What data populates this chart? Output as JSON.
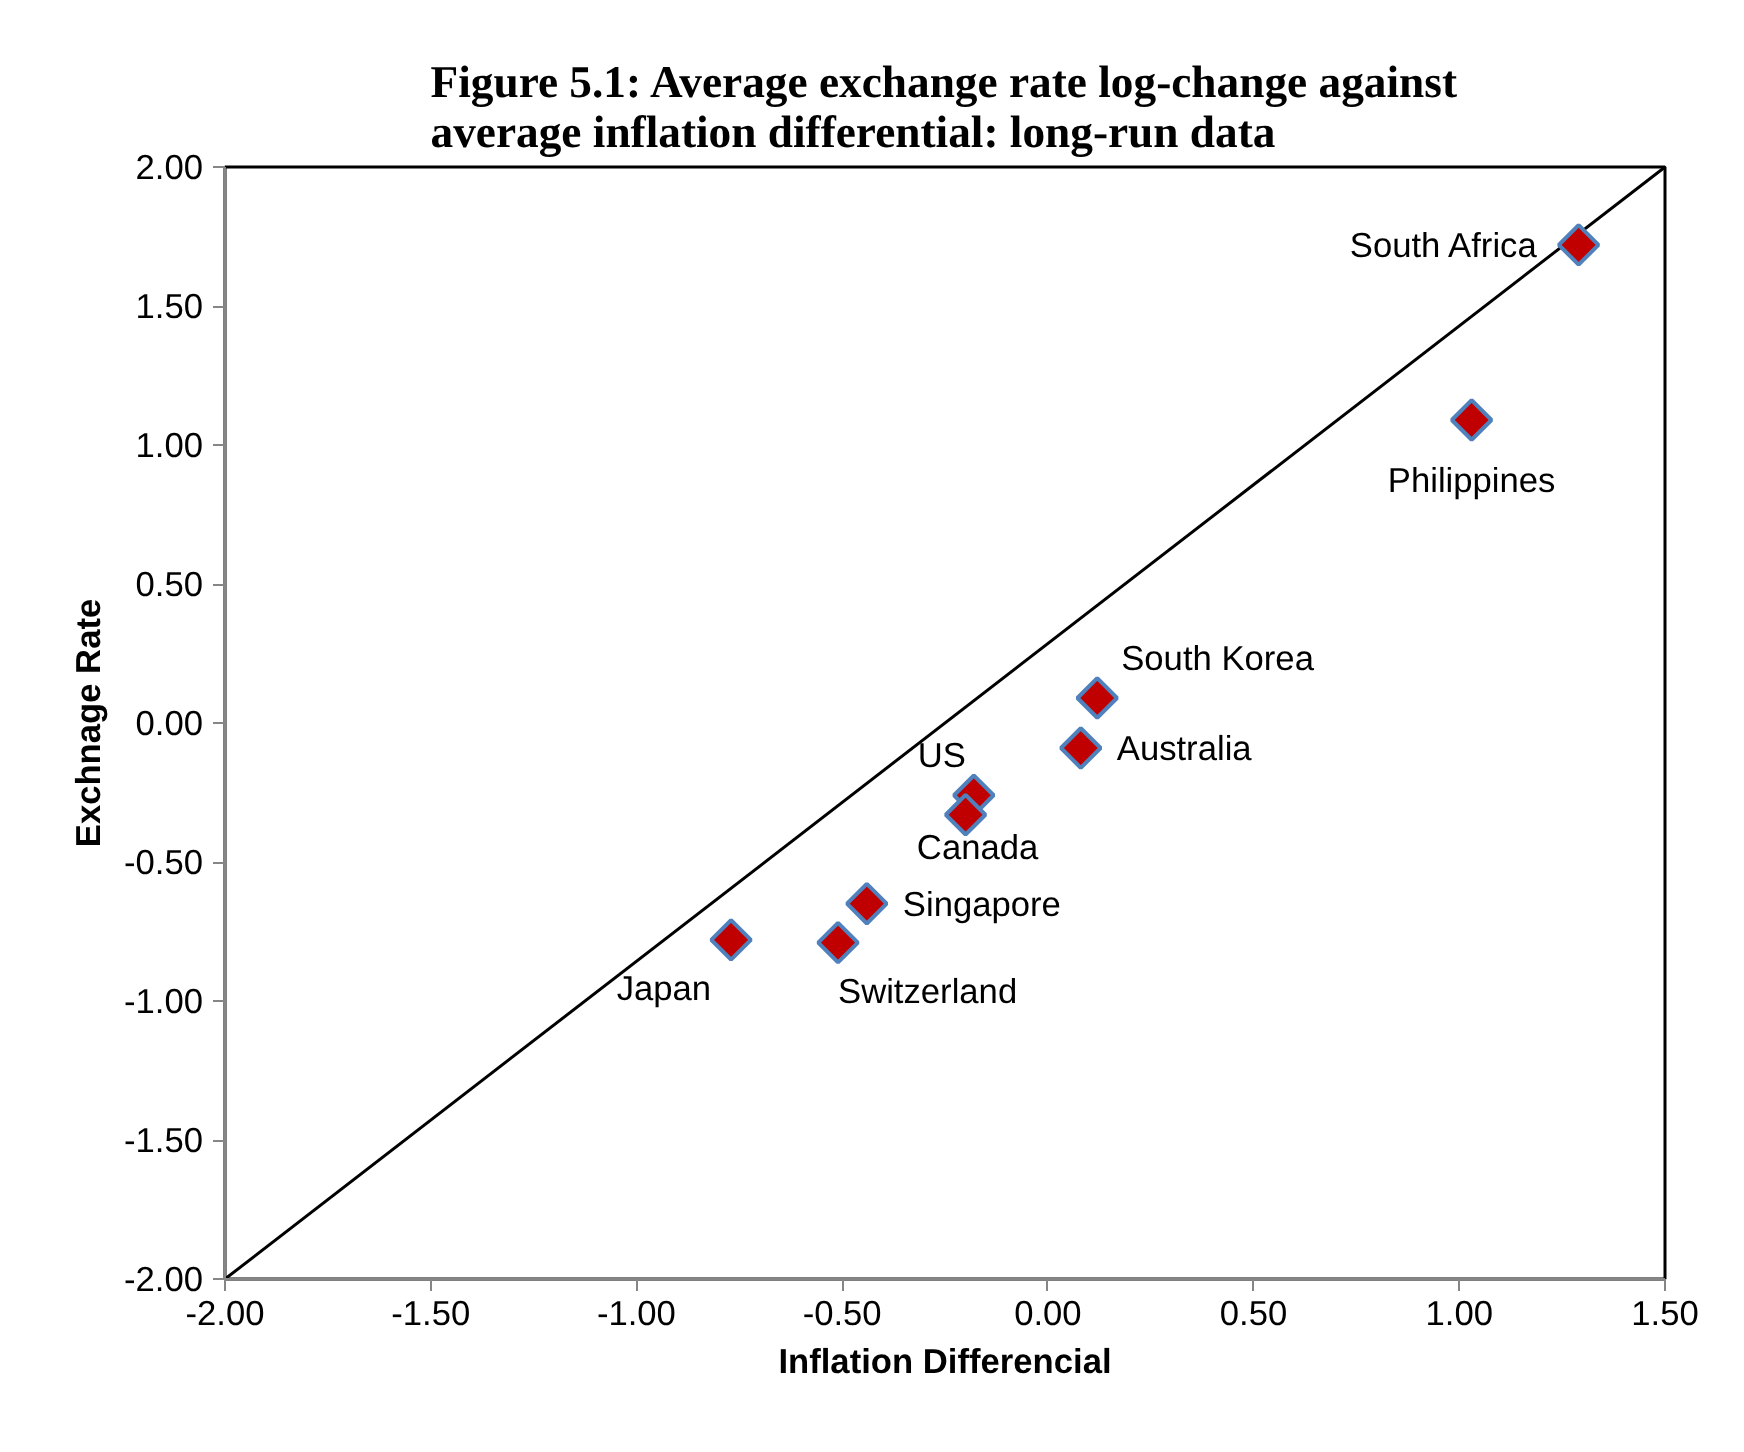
{
  "chart_data": {
    "type": "scatter",
    "title": "Figure 5.1: Average exchange rate log-change against average inflation differential: long-run data",
    "xlabel": "Inflation Differencial",
    "ylabel": "Exchnage Rate",
    "xlim": [
      -2,
      1.5
    ],
    "xticks": [
      {
        "value": -2,
        "label": "-2.00"
      },
      {
        "value": -1.5,
        "label": "-1.50"
      },
      {
        "value": -1,
        "label": "-1.00"
      },
      {
        "value": -0.5,
        "label": "-0.50"
      },
      {
        "value": 0,
        "label": "0.00"
      },
      {
        "value": 0.5,
        "label": "0.50"
      },
      {
        "value": 1,
        "label": "1.00"
      },
      {
        "value": 1.5,
        "label": "1.50"
      }
    ],
    "ylim": [
      -2,
      2
    ],
    "yticks": [
      {
        "value": -2,
        "label": "-2.00"
      },
      {
        "value": -1.5,
        "label": "-1.50"
      },
      {
        "value": -1,
        "label": "-1.00"
      },
      {
        "value": -0.5,
        "label": "-0.50"
      },
      {
        "value": 0,
        "label": "0.00"
      },
      {
        "value": 0.5,
        "label": "0.50"
      },
      {
        "value": 1,
        "label": "1.00"
      },
      {
        "value": 1.5,
        "label": "1.50"
      },
      {
        "value": 2,
        "label": "2.00"
      }
    ],
    "marker": "diamond",
    "grid": false,
    "series": [
      {
        "type": "line",
        "color": "#000000",
        "x": [
          -2,
          1.5
        ],
        "values": [
          -2,
          2
        ],
        "marker": "none"
      },
      {
        "color": "#c00000",
        "x": [
          1.29,
          1.03,
          0.12,
          0.08,
          -0.18,
          -0.2,
          -0.44,
          -0.51,
          -0.77
        ],
        "values": [
          1.72,
          1.09,
          0.09,
          -0.09,
          -0.26,
          -0.33,
          -0.65,
          -0.79,
          -0.78
        ]
      }
    ],
    "annotations": [
      {
        "text": "South Africa",
        "x": 1.29,
        "y": 1.72
      },
      {
        "text": "Philippines",
        "x": 1.03,
        "y": 1.09
      },
      {
        "text": "South Korea",
        "x": 0.12,
        "y": 0.09
      },
      {
        "text": "Australia",
        "x": 0.08,
        "y": -0.09
      },
      {
        "text": "US",
        "x": -0.18,
        "y": -0.26
      },
      {
        "text": "Canada",
        "x": -0.2,
        "y": -0.33
      },
      {
        "text": "Singapore",
        "x": -0.44,
        "y": -0.65
      },
      {
        "text": "Switzerland",
        "x": -0.51,
        "y": -0.79
      },
      {
        "text": "Japan",
        "x": -0.77,
        "y": -0.78
      }
    ]
  }
}
